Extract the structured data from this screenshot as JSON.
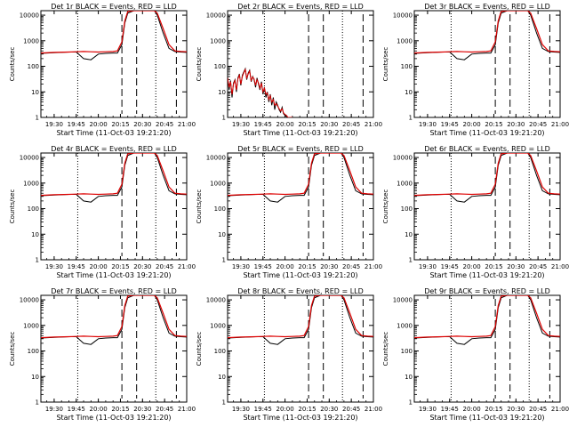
{
  "figure": {
    "background": "#ffffff",
    "axis_color": "#000000",
    "series_colors": {
      "events": "#000000",
      "lld": "#dd0000"
    }
  },
  "chart_data": [
    {
      "type": "line",
      "title": "Det 1r BLACK = Events, RED = LLD",
      "ylabel": "Counts/sec",
      "xlabel": "Start Time (11-Oct-03 19:21:20)",
      "id": "1r",
      "profile": "normal"
    },
    {
      "type": "line",
      "title": "Det 2r BLACK = Events, RED = LLD",
      "ylabel": "Counts/sec",
      "xlabel": "Start Time (11-Oct-03 19:21:20)",
      "id": "2r",
      "profile": "noisy"
    },
    {
      "type": "line",
      "title": "Det 3r BLACK = Events, RED = LLD",
      "ylabel": "Counts/sec",
      "xlabel": "Start Time (11-Oct-03 19:21:20)",
      "id": "3r",
      "profile": "normal"
    },
    {
      "type": "line",
      "title": "Det 4r BLACK = Events, RED = LLD",
      "ylabel": "Counts/sec",
      "xlabel": "Start Time (11-Oct-03 19:21:20)",
      "id": "4r",
      "profile": "normal"
    },
    {
      "type": "line",
      "title": "Det 5r BLACK = Events, RED = LLD",
      "ylabel": "Counts/sec",
      "xlabel": "Start Time (11-Oct-03 19:21:20)",
      "id": "5r",
      "profile": "normal"
    },
    {
      "type": "line",
      "title": "Det 6r BLACK = Events, RED = LLD",
      "ylabel": "Counts/sec",
      "xlabel": "Start Time (11-Oct-03 19:21:20)",
      "id": "6r",
      "profile": "normal"
    },
    {
      "type": "line",
      "title": "Det 7r BLACK = Events, RED = LLD",
      "ylabel": "Counts/sec",
      "xlabel": "Start Time (11-Oct-03 19:21:20)",
      "id": "7r",
      "profile": "normal"
    },
    {
      "type": "line",
      "title": "Det 8r BLACK = Events, RED = LLD",
      "ylabel": "Counts/sec",
      "xlabel": "Start Time (11-Oct-03 19:21:20)",
      "id": "8r",
      "profile": "normal"
    },
    {
      "type": "line",
      "title": "Det 9r BLACK = Events, RED = LLD",
      "ylabel": "Counts/sec",
      "xlabel": "Start Time (11-Oct-03 19:21:20)",
      "id": "9r",
      "profile": "normal"
    }
  ],
  "axes": {
    "y_scale": "log",
    "ylim": [
      1,
      15000
    ],
    "y_ticks": [
      1,
      10,
      100,
      1000,
      10000
    ],
    "x_range": [
      "19:21",
      "21:00"
    ],
    "x_tick_labels": [
      "19:30",
      "19:45",
      "20:00",
      "20:15",
      "20:30",
      "20:45",
      "21:00"
    ],
    "x_tick_minutes": [
      30,
      45,
      60,
      75,
      90,
      105,
      120
    ],
    "dotted_markers_at": [
      "19:46",
      "20:39"
    ],
    "dashed_markers_at": [
      "20:16",
      "20:26",
      "20:53"
    ]
  },
  "series_shape": {
    "x_minutes_since_19_00": [
      21,
      30,
      40,
      45,
      50,
      55,
      60,
      65,
      70,
      73,
      76,
      78,
      80,
      84,
      88,
      92,
      95,
      98,
      100,
      104,
      108,
      112,
      116,
      120
    ],
    "lld": [
      330,
      350,
      360,
      370,
      380,
      370,
      360,
      370,
      380,
      400,
      900,
      6000,
      14000,
      15000,
      15000,
      15000,
      15000,
      15000,
      12000,
      3000,
      700,
      400,
      380,
      370
    ],
    "events": [
      320,
      340,
      360,
      360,
      200,
      180,
      300,
      320,
      330,
      330,
      700,
      5000,
      12000,
      15000,
      15000,
      15000,
      15000,
      15000,
      10000,
      2000,
      500,
      380,
      360,
      350
    ],
    "noisy_x": [
      21,
      22,
      23,
      24,
      25,
      26,
      27,
      28,
      29,
      30,
      31,
      32,
      33,
      34,
      35,
      36,
      37,
      38,
      39,
      40,
      41,
      42,
      43,
      44,
      45,
      46,
      47,
      48,
      49,
      50,
      51,
      52,
      53,
      54,
      55,
      56,
      57,
      58,
      59,
      60,
      61,
      62,
      63,
      64,
      65
    ],
    "noisy_events": [
      40,
      12,
      28,
      6,
      22,
      30,
      10,
      35,
      50,
      18,
      45,
      60,
      80,
      30,
      55,
      70,
      25,
      40,
      30,
      15,
      35,
      20,
      12,
      25,
      8,
      15,
      6,
      10,
      4,
      8,
      3,
      6,
      2,
      4,
      3,
      2,
      1.6,
      2.5,
      1.4,
      1.2,
      1.1,
      1,
      1,
      1,
      1
    ],
    "noisy_lld": [
      35,
      15,
      25,
      8,
      20,
      28,
      12,
      32,
      45,
      20,
      40,
      55,
      75,
      35,
      50,
      65,
      28,
      38,
      32,
      18,
      30,
      22,
      14,
      22,
      10,
      14,
      8,
      9,
      5,
      7,
      4,
      5,
      3,
      3.5,
      2.8,
      2.2,
      1.8,
      2.2,
      1.5,
      1.3,
      1.2,
      1,
      1,
      1,
      1
    ]
  }
}
